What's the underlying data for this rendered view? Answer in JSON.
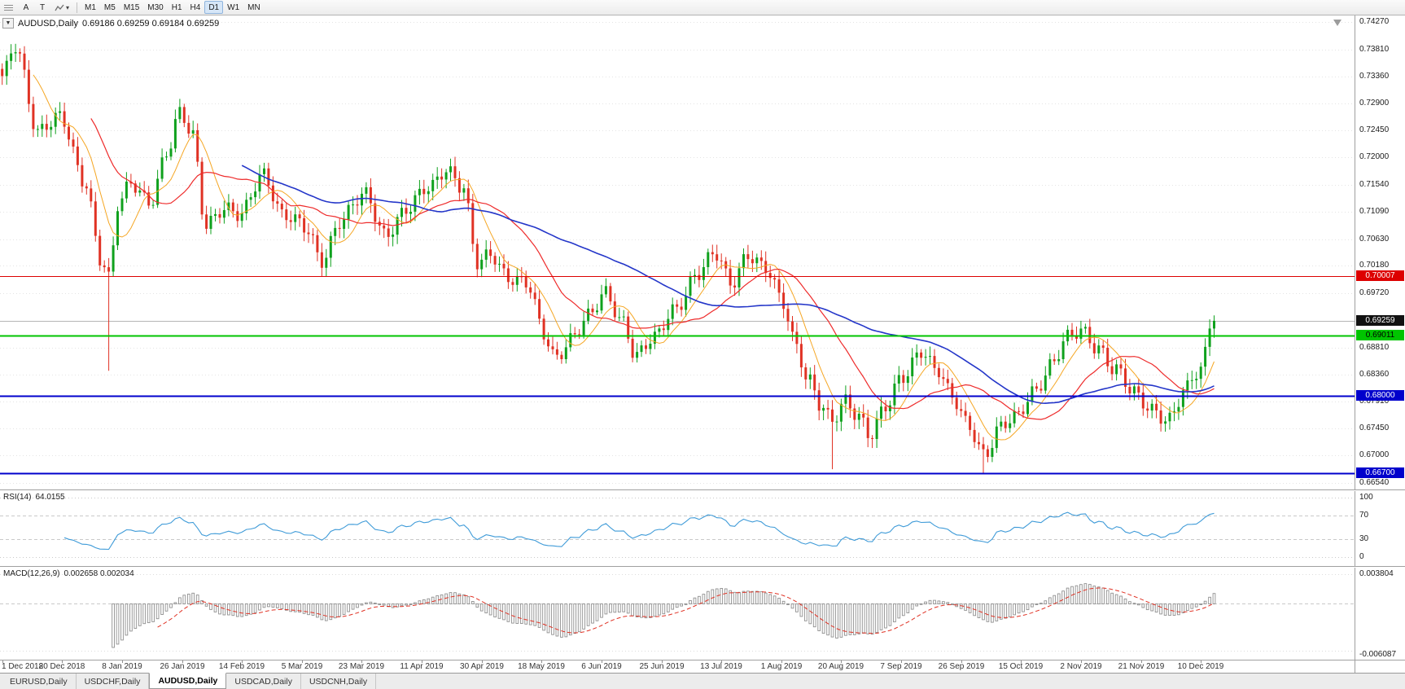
{
  "toolbar": {
    "tool_buttons": [
      {
        "id": "a",
        "label": "A"
      },
      {
        "id": "t",
        "label": "T"
      }
    ],
    "chart_style_caret": "▾",
    "timeframes": [
      "M1",
      "M5",
      "M15",
      "M30",
      "H1",
      "H4",
      "D1",
      "W1",
      "MN"
    ],
    "active_timeframe": "D1"
  },
  "price_panel": {
    "one_click_glyph": "▼",
    "title_symbol": "AUDUSD,Daily",
    "title_ohlc": "0.69186 0.69259 0.69184 0.69259"
  },
  "rsi_panel": {
    "label": "RSI(14)",
    "value": "64.0155"
  },
  "macd_panel": {
    "label": "MACD(12,26,9)",
    "values": "0.002658 0.002034"
  },
  "tabs": [
    {
      "label": "EURUSD,Daily",
      "active": false
    },
    {
      "label": "USDCHF,Daily",
      "active": false
    },
    {
      "label": "AUDUSD,Daily",
      "active": true
    },
    {
      "label": "USDCAD,Daily",
      "active": false
    },
    {
      "label": "USDCNH,Daily",
      "active": false
    }
  ],
  "chart_data": {
    "type": "candlestick",
    "symbol": "AUDUSD",
    "period": "Daily",
    "ohlc_current": {
      "open": 0.69186,
      "high": 0.69259,
      "low": 0.69184,
      "close": 0.69259
    },
    "candle_count": 274,
    "x_fill_fraction": 0.898,
    "ylim": [
      0.6643,
      0.7438
    ],
    "y_ticks": [
      0.7427,
      0.7381,
      0.7336,
      0.729,
      0.7245,
      0.72,
      0.7154,
      0.7109,
      0.7063,
      0.7018,
      0.6972,
      0.6926,
      0.6881,
      0.6836,
      0.6791,
      0.6745,
      0.67,
      0.6654
    ],
    "x_labels": [
      "1 Dec 2018",
      "20 Dec 2018",
      "8 Jan 2019",
      "26 Jan 2019",
      "14 Feb 2019",
      "5 Mar 2019",
      "23 Mar 2019",
      "11 Apr 2019",
      "30 Apr 2019",
      "18 May 2019",
      "6 Jun 2019",
      "25 Jun 2019",
      "13 Jul 2019",
      "1 Aug 2019",
      "20 Aug 2019",
      "7 Sep 2019",
      "26 Sep 2019",
      "15 Oct 2019",
      "2 Nov 2019",
      "21 Nov 2019",
      "10 Dec 2019"
    ],
    "price_anchors": [
      [
        0.0,
        0.733
      ],
      [
        0.011,
        0.739
      ],
      [
        0.03,
        0.7245
      ],
      [
        0.048,
        0.7262
      ],
      [
        0.068,
        0.7165
      ],
      [
        0.082,
        0.7028
      ],
      [
        0.088,
        0.6992
      ],
      [
        0.096,
        0.7118
      ],
      [
        0.107,
        0.7158
      ],
      [
        0.122,
        0.713
      ],
      [
        0.136,
        0.7205
      ],
      [
        0.147,
        0.727
      ],
      [
        0.157,
        0.7238
      ],
      [
        0.168,
        0.7092
      ],
      [
        0.181,
        0.7112
      ],
      [
        0.196,
        0.7098
      ],
      [
        0.215,
        0.7178
      ],
      [
        0.233,
        0.7098
      ],
      [
        0.252,
        0.7078
      ],
      [
        0.263,
        0.7032
      ],
      [
        0.279,
        0.7092
      ],
      [
        0.3,
        0.7136
      ],
      [
        0.316,
        0.7076
      ],
      [
        0.334,
        0.7108
      ],
      [
        0.352,
        0.715
      ],
      [
        0.366,
        0.7186
      ],
      [
        0.38,
        0.7148
      ],
      [
        0.392,
        0.7018
      ],
      [
        0.404,
        0.704
      ],
      [
        0.418,
        0.7002
      ],
      [
        0.433,
        0.6984
      ],
      [
        0.447,
        0.6902
      ],
      [
        0.456,
        0.6868
      ],
      [
        0.469,
        0.6898
      ],
      [
        0.484,
        0.6928
      ],
      [
        0.498,
        0.6972
      ],
      [
        0.512,
        0.693
      ],
      [
        0.523,
        0.6866
      ],
      [
        0.538,
        0.6892
      ],
      [
        0.554,
        0.6948
      ],
      [
        0.573,
        0.7002
      ],
      [
        0.589,
        0.7034
      ],
      [
        0.601,
        0.6992
      ],
      [
        0.615,
        0.704
      ],
      [
        0.63,
        0.7008
      ],
      [
        0.644,
        0.6956
      ],
      [
        0.655,
        0.689
      ],
      [
        0.665,
        0.683
      ],
      [
        0.677,
        0.6775
      ],
      [
        0.684,
        0.675
      ],
      [
        0.696,
        0.6792
      ],
      [
        0.707,
        0.6772
      ],
      [
        0.716,
        0.6736
      ],
      [
        0.729,
        0.6776
      ],
      [
        0.743,
        0.6832
      ],
      [
        0.758,
        0.6882
      ],
      [
        0.771,
        0.6842
      ],
      [
        0.784,
        0.6792
      ],
      [
        0.798,
        0.6752
      ],
      [
        0.811,
        0.6704
      ],
      [
        0.823,
        0.6742
      ],
      [
        0.836,
        0.676
      ],
      [
        0.851,
        0.6812
      ],
      [
        0.866,
        0.6852
      ],
      [
        0.879,
        0.6892
      ],
      [
        0.891,
        0.691
      ],
      [
        0.904,
        0.6886
      ],
      [
        0.918,
        0.6842
      ],
      [
        0.933,
        0.6802
      ],
      [
        0.949,
        0.6782
      ],
      [
        0.963,
        0.676
      ],
      [
        0.976,
        0.6804
      ],
      [
        0.987,
        0.684
      ],
      [
        0.996,
        0.689
      ],
      [
        1.0,
        0.6926
      ]
    ],
    "special_points": [
      {
        "f": 0.088,
        "low": 0.6842
      },
      {
        "f": 0.147,
        "high": 0.7296
      },
      {
        "f": 0.684,
        "low": 0.6677
      },
      {
        "f": 0.811,
        "low": 0.667
      }
    ],
    "levels": [
      {
        "price": 0.70007,
        "label": "0.70007",
        "color": "#dd0000",
        "text_color": "#ffffff",
        "width": 1
      },
      {
        "price": 0.69011,
        "label": "0.69011",
        "color": "#00c400",
        "text_color": "#000000",
        "width": 2
      },
      {
        "price": 0.68,
        "label": "0.68000",
        "color": "#0000cc",
        "text_color": "#ffffff",
        "width": 2
      },
      {
        "price": 0.667,
        "label": "0.66700",
        "color": "#0000cc",
        "text_color": "#ffffff",
        "width": 2
      }
    ],
    "current_price": {
      "price": 0.69259,
      "label": "0.69259",
      "color": "#111111",
      "text_color": "#ffffff"
    },
    "candle_up_color": "#0fa11d",
    "candle_down_color": "#e03224",
    "moving_averages": [
      {
        "period": 8,
        "color": "#f5a623",
        "width": 1
      },
      {
        "period": 21,
        "color": "#ee2b2b",
        "width": 1.2
      },
      {
        "period": 55,
        "color": "#2436c9",
        "width": 1.6
      }
    ],
    "rsi": {
      "period": 14,
      "color": "#3f9bd8",
      "levels": [
        100,
        70,
        30,
        0
      ],
      "value": 64.0155
    },
    "macd": {
      "fast": 12,
      "slow": 26,
      "signal": 9,
      "hist_color": "#8f8f8f",
      "signal_color": "#e03224",
      "y_max_label": "0.003804",
      "y_min_label": "-0.006087",
      "main_value": 0.002658,
      "signal_value": 0.002034
    }
  }
}
